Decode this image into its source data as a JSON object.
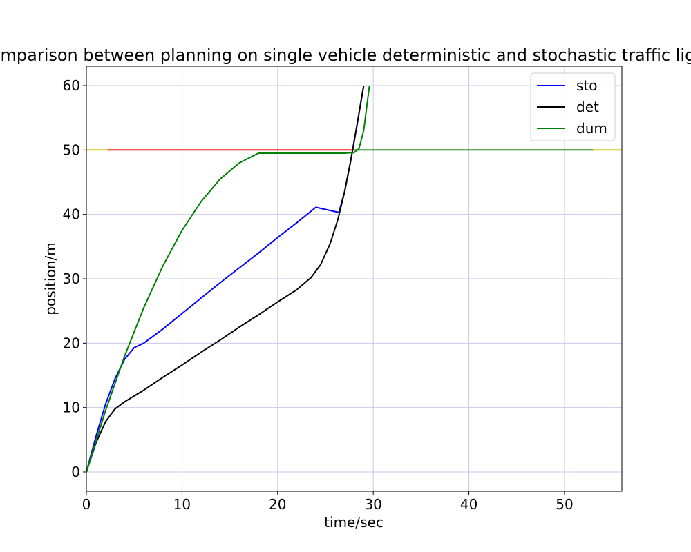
{
  "chart_data": {
    "type": "line",
    "title": "Comparison between planning on single vehicle deterministic and stochastic traffic light",
    "xlabel": "time/sec",
    "ylabel": "position/m",
    "xlim": [
      0,
      56
    ],
    "ylim": [
      -3,
      63
    ],
    "xticks": [
      0,
      10,
      20,
      30,
      40,
      50
    ],
    "yticks": [
      0,
      10,
      20,
      30,
      40,
      50,
      60
    ],
    "grid": true,
    "grid_color": "#c8c8f0",
    "legend_position": "top-right",
    "series": [
      {
        "name": "sto",
        "color": "#0000ff",
        "x": [
          0,
          1,
          2,
          3,
          4,
          5,
          6,
          8,
          10,
          12,
          14,
          16,
          18,
          20,
          22,
          24,
          26.4,
          27,
          27.6,
          28.2,
          28.6,
          29
        ],
        "y": [
          0,
          5.5,
          10.5,
          14.5,
          17.5,
          19.3,
          20,
          22.2,
          24.6,
          27,
          29.4,
          31.7,
          34,
          36.4,
          38.7,
          41.1,
          40.3,
          43.5,
          48,
          53,
          56.5,
          60
        ]
      },
      {
        "name": "det",
        "color": "#000000",
        "x": [
          0,
          1,
          2,
          3,
          4,
          6,
          8,
          10,
          12,
          14,
          16,
          18,
          20,
          22,
          23.5,
          24.5,
          25.5,
          26.3,
          27,
          27.6,
          28.2,
          28.6,
          29
        ],
        "y": [
          0,
          4.5,
          7.8,
          9.8,
          10.9,
          12.7,
          14.7,
          16.6,
          18.6,
          20.5,
          22.5,
          24.4,
          26.4,
          28.3,
          30.2,
          32.2,
          35.5,
          39.2,
          43.5,
          48,
          53,
          56.5,
          60
        ]
      },
      {
        "name": "dum",
        "color": "#008000",
        "x": [
          0,
          2,
          4,
          6,
          8,
          10,
          12,
          14,
          16,
          18,
          20,
          22,
          24,
          26,
          27,
          28,
          28.5,
          29,
          29.3,
          29.6
        ],
        "y": [
          0,
          9.5,
          18,
          25.5,
          32,
          37.5,
          42,
          45.5,
          48,
          49.5,
          49.5,
          49.5,
          49.5,
          49.5,
          49.5,
          49.6,
          50.2,
          53,
          56.5,
          60
        ]
      }
    ],
    "traffic_light_segments": [
      {
        "color": "#d2c200",
        "x": [
          0,
          2.2
        ],
        "y": 50
      },
      {
        "color": "#dd0000",
        "x": [
          2.2,
          28
        ],
        "y": 50
      },
      {
        "color": "#008000",
        "x": [
          28,
          53
        ],
        "y": 50
      },
      {
        "color": "#d2c200",
        "x": [
          53,
          56
        ],
        "y": 50
      }
    ]
  }
}
